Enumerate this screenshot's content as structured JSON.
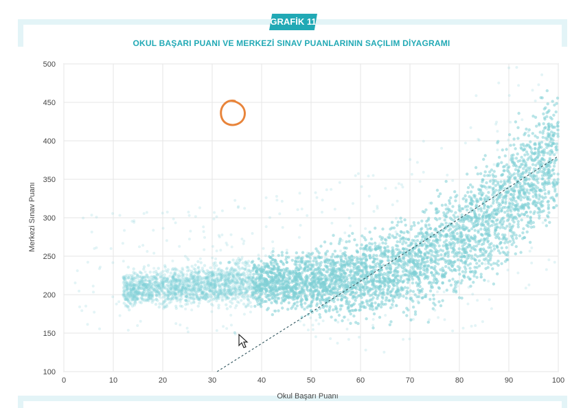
{
  "badge": "GRAFİK 11",
  "title": "OKUL BAŞARI PUANI VE MERKEZİ SINAV PUANLARININ SAÇILIM DİYAGRAMI",
  "colors": {
    "accent": "#21a9b5",
    "points": "#7fcfd6",
    "annotation": "#e8843a"
  },
  "annotation_icon": "hand-drawn-circle",
  "cursor_icon": "mouse-pointer-icon",
  "chart_data": {
    "type": "scatter",
    "title": "OKUL BAŞARI PUANI VE MERKEZİ SINAV PUANLARININ SAÇILIM DİYAGRAMI",
    "xlabel": "Okul Başarı Puanı",
    "ylabel": "Merkezi Sınav Puanı",
    "xlim": [
      0,
      100
    ],
    "ylim": [
      100,
      500
    ],
    "xticks": [
      "0",
      "10",
      "20",
      "30",
      "40",
      "50",
      "60",
      "70",
      "80",
      "90",
      "100"
    ],
    "yticks": [
      "100",
      "150",
      "200",
      "250",
      "300",
      "350",
      "400",
      "450",
      "500"
    ],
    "grid": true,
    "point_cloud": {
      "description_points": [
        {
          "x": 15,
          "y": 205
        },
        {
          "x": 25,
          "y": 210
        },
        {
          "x": 35,
          "y": 200
        },
        {
          "x": 45,
          "y": 200
        },
        {
          "x": 55,
          "y": 210
        },
        {
          "x": 65,
          "y": 225
        },
        {
          "x": 75,
          "y": 260
        },
        {
          "x": 85,
          "y": 300
        },
        {
          "x": 95,
          "y": 370
        },
        {
          "x": 100,
          "y": 420
        }
      ],
      "lower_edge": [
        {
          "x": 15,
          "y": 175
        },
        {
          "x": 30,
          "y": 175
        },
        {
          "x": 45,
          "y": 170
        },
        {
          "x": 55,
          "y": 155
        },
        {
          "x": 65,
          "y": 150
        },
        {
          "x": 75,
          "y": 160
        },
        {
          "x": 85,
          "y": 190
        },
        {
          "x": 95,
          "y": 240
        },
        {
          "x": 100,
          "y": 270
        }
      ],
      "upper_edge": [
        {
          "x": 15,
          "y": 240
        },
        {
          "x": 30,
          "y": 250
        },
        {
          "x": 45,
          "y": 265
        },
        {
          "x": 55,
          "y": 280
        },
        {
          "x": 65,
          "y": 305
        },
        {
          "x": 75,
          "y": 345
        },
        {
          "x": 85,
          "y": 400
        },
        {
          "x": 95,
          "y": 470
        },
        {
          "x": 100,
          "y": 500
        }
      ]
    },
    "trend_line": [
      {
        "x": 31,
        "y": 100
      },
      {
        "x": 100,
        "y": 380
      }
    ]
  }
}
